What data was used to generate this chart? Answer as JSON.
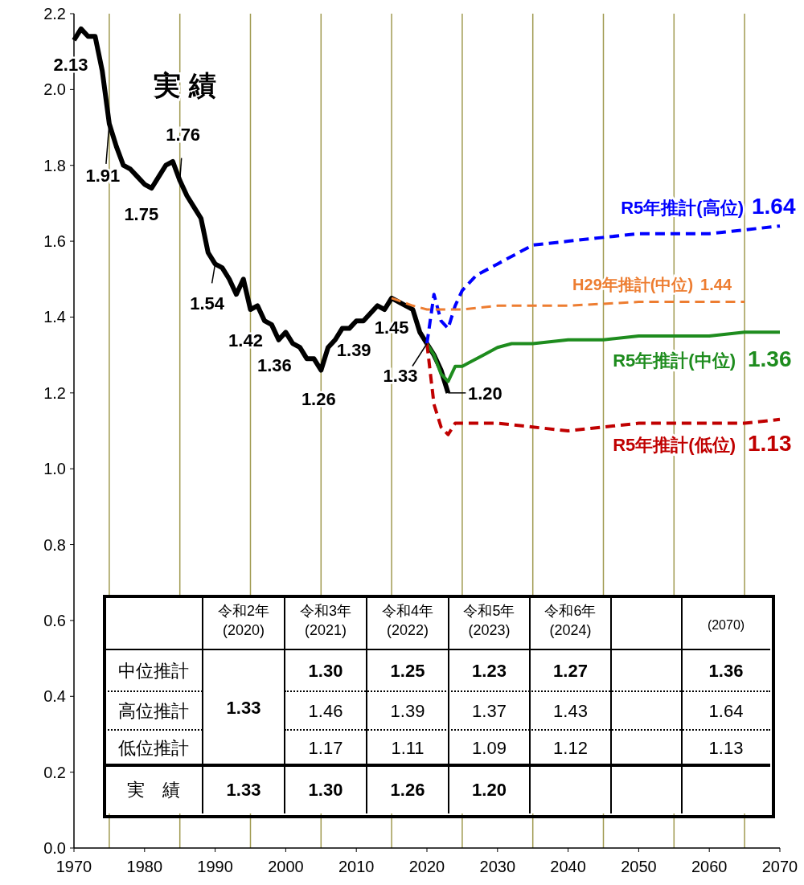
{
  "chart_data": {
    "type": "line",
    "xlim": [
      1970,
      2070
    ],
    "xticks": [
      1970,
      1980,
      1990,
      2000,
      2010,
      2020,
      2030,
      2040,
      2050,
      2060,
      2070
    ],
    "ylim": [
      0,
      2.2
    ],
    "yticks": [
      {
        "value": 0,
        "label": "0.0"
      },
      0.2,
      0.4,
      0.6,
      0.8,
      {
        "value": 1,
        "label": "1.0"
      },
      1.2,
      1.4,
      1.6,
      1.8,
      {
        "value": 2,
        "label": "2.0"
      },
      2.2
    ],
    "grid": false,
    "legend": false,
    "ref_lines": [
      {
        "axis": "x",
        "value": 1975,
        "color": "#a09a50"
      },
      {
        "axis": "x",
        "value": 1985,
        "color": "#a09a50"
      },
      {
        "axis": "x",
        "value": 1995,
        "color": "#a09a50"
      },
      {
        "axis": "x",
        "value": 2005,
        "color": "#a09a50"
      },
      {
        "axis": "x",
        "value": 2015,
        "color": "#a09a50"
      },
      {
        "axis": "x",
        "value": 2025,
        "color": "#a09a50"
      },
      {
        "axis": "x",
        "value": 2035,
        "color": "#a09a50"
      },
      {
        "axis": "x",
        "value": 2045,
        "color": "#a09a50"
      },
      {
        "axis": "x",
        "value": 2055,
        "color": "#a09a50"
      },
      {
        "axis": "x",
        "value": 2065,
        "color": "#a09a50"
      }
    ],
    "series": [
      {
        "color": "#000000",
        "line_style": "solid",
        "x": [
          1970,
          1971,
          1972,
          1973,
          1974,
          1975,
          1976,
          1977,
          1978,
          1979,
          1980,
          1981,
          1982,
          1983,
          1984,
          1985,
          1986,
          1987,
          1988,
          1989,
          1990,
          1991,
          1992,
          1993,
          1994,
          1995,
          1996,
          1997,
          1998,
          1999,
          2000,
          2001,
          2002,
          2003,
          2004,
          2005,
          2006,
          2007,
          2008,
          2009,
          2010,
          2011,
          2012,
          2013,
          2014,
          2015,
          2016,
          2017,
          2018,
          2019,
          2020,
          2021,
          2022,
          2023
        ],
        "values": [
          2.13,
          2.16,
          2.14,
          2.14,
          2.05,
          1.91,
          1.85,
          1.8,
          1.79,
          1.77,
          1.75,
          1.74,
          1.77,
          1.8,
          1.81,
          1.76,
          1.72,
          1.69,
          1.66,
          1.57,
          1.54,
          1.53,
          1.5,
          1.46,
          1.5,
          1.42,
          1.43,
          1.39,
          1.38,
          1.34,
          1.36,
          1.33,
          1.32,
          1.29,
          1.29,
          1.26,
          1.32,
          1.34,
          1.37,
          1.37,
          1.39,
          1.39,
          1.41,
          1.43,
          1.42,
          1.45,
          1.44,
          1.43,
          1.42,
          1.36,
          1.33,
          1.3,
          1.26,
          1.2
        ]
      },
      {
        "name": "R5年推計(高位)",
        "color": "#0000ff",
        "line_style": "dashed",
        "x": [
          2020,
          2021,
          2022,
          2023,
          2024,
          2025,
          2027,
          2030,
          2035,
          2040,
          2045,
          2050,
          2055,
          2060,
          2065,
          2070
        ],
        "values": [
          1.33,
          1.46,
          1.39,
          1.37,
          1.43,
          1.47,
          1.51,
          1.54,
          1.59,
          1.6,
          1.61,
          1.62,
          1.62,
          1.62,
          1.63,
          1.64
        ]
      },
      {
        "name": "H29年推計(中位)",
        "color": "#ed7d31",
        "line_style": "dashed",
        "x": [
          2015,
          2018,
          2020,
          2023,
          2025,
          2030,
          2040,
          2050,
          2060,
          2065
        ],
        "values": [
          1.45,
          1.43,
          1.42,
          1.42,
          1.42,
          1.43,
          1.43,
          1.44,
          1.44,
          1.44
        ]
      },
      {
        "name": "R5年推計(中位)",
        "color": "#1e8c1e",
        "line_style": "solid",
        "x": [
          2020,
          2021,
          2022,
          2023,
          2024,
          2025,
          2026,
          2028,
          2030,
          2032,
          2035,
          2040,
          2045,
          2050,
          2055,
          2060,
          2065,
          2070
        ],
        "values": [
          1.33,
          1.3,
          1.25,
          1.23,
          1.27,
          1.27,
          1.28,
          1.3,
          1.32,
          1.33,
          1.33,
          1.34,
          1.34,
          1.35,
          1.35,
          1.35,
          1.36,
          1.36
        ]
      },
      {
        "name": "R5年推計(低位)",
        "color": "#c00000",
        "line_style": "dashed",
        "x": [
          2020,
          2021,
          2022,
          2023,
          2024,
          2026,
          2030,
          2035,
          2040,
          2045,
          2050,
          2055,
          2060,
          2065,
          2070
        ],
        "values": [
          1.33,
          1.17,
          1.11,
          1.09,
          1.12,
          1.12,
          1.12,
          1.11,
          1.1,
          1.11,
          1.12,
          1.12,
          1.12,
          1.12,
          1.13
        ]
      }
    ],
    "annotations": [
      "実 績",
      {
        "text": "2.13",
        "x": 1970,
        "y": 2.13
      },
      {
        "text": "1.91",
        "x": 1975,
        "y": 1.91
      },
      {
        "text": "1.75",
        "x": 1980,
        "y": 1.75
      },
      {
        "text": "1.76",
        "x": 1985,
        "y": 1.76
      },
      {
        "text": "1.54",
        "x": 1990,
        "y": 1.54
      },
      {
        "text": "1.42",
        "x": 1995,
        "y": 1.42
      },
      {
        "text": "1.36",
        "x": 2000,
        "y": 1.36
      },
      {
        "text": "1.26",
        "x": 2005,
        "y": 1.26
      },
      {
        "text": "1.39",
        "x": 2010,
        "y": 1.39
      },
      {
        "text": "1.45",
        "x": 2015,
        "y": 1.45
      },
      {
        "text": "1.33",
        "x": 2020,
        "y": 1.33
      },
      {
        "text": "1.20",
        "x": 2023,
        "y": 1.2
      },
      {
        "text": "1.64",
        "x": 2070,
        "y": 1.64
      },
      {
        "text": "1.44",
        "x": 2065,
        "y": 1.44
      },
      {
        "text": "1.36",
        "x": 2070,
        "y": 1.36
      },
      {
        "text": "1.13",
        "x": 2070,
        "y": 1.13
      },
      "令和2年",
      "(2020)",
      "令和3年",
      "(2021)",
      "令和4年",
      "(2022)",
      "令和5年",
      "(2023)",
      "令和6年",
      "(2024)",
      "(2070)",
      "中位推計",
      "高位推計",
      "低位推計",
      "実　績",
      "1.33",
      "1.30",
      "1.25",
      "1.23",
      "1.27",
      "1.36",
      "1.46",
      "1.39",
      "1.37",
      "1.43",
      "1.64",
      "1.17",
      "1.11",
      "1.09",
      "1.12",
      "1.13",
      "1.33",
      "1.30",
      "1.26",
      "1.20"
    ]
  }
}
